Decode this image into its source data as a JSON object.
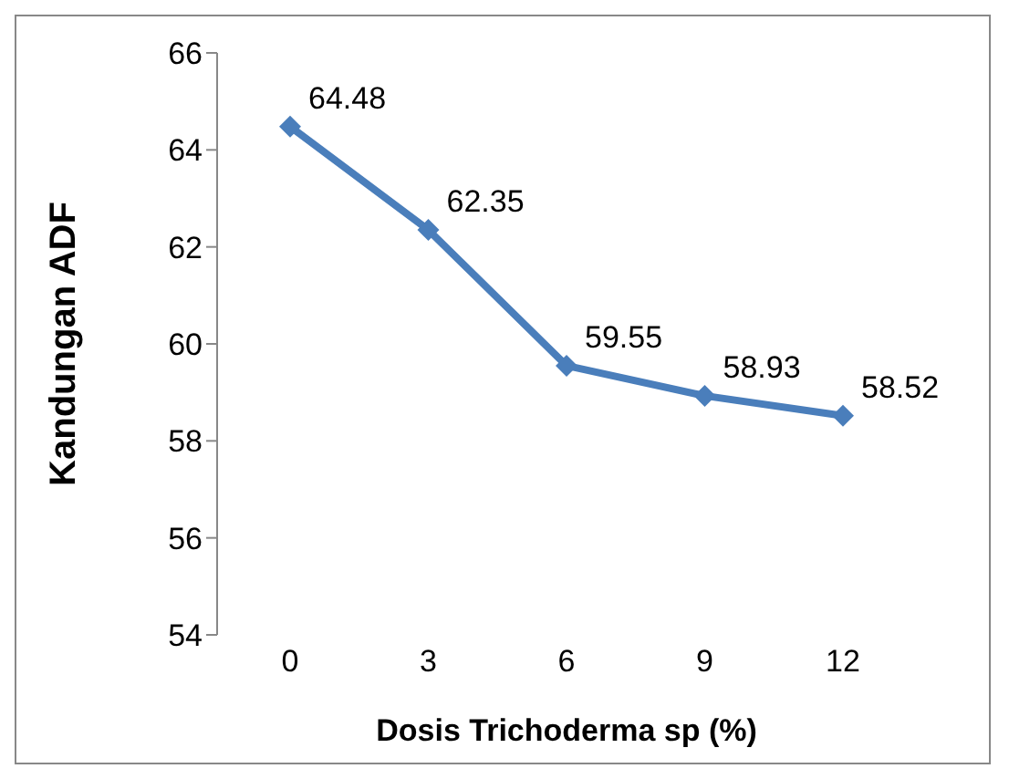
{
  "chart_data": {
    "type": "line",
    "xlabel": "Dosis Trichoderma sp (%)",
    "ylabel": "Kandungan ADF",
    "categories": [
      "0",
      "3",
      "6",
      "9",
      "12"
    ],
    "series": [
      {
        "color": "#4a7ebb",
        "values": [
          64.48,
          62.35,
          59.55,
          58.93,
          58.52
        ]
      }
    ],
    "ylim": [
      54,
      66
    ],
    "yticks": [
      54,
      56,
      58,
      60,
      62,
      64,
      66
    ],
    "grid": false,
    "legend": false,
    "marker": "diamond",
    "line_style": "solid",
    "data_labels": true
  }
}
